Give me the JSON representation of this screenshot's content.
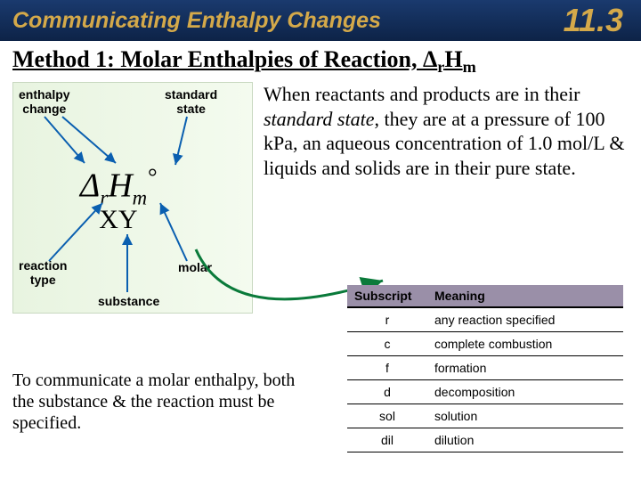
{
  "header": {
    "title": "Communicating Enthalpy Changes",
    "section_number": "11.3",
    "bg_gradient_top": "#1a3a6e",
    "bg_gradient_bottom": "#0d2347",
    "text_color": "#d4a94a"
  },
  "method_title_prefix": "Method 1: Molar Enthalpies of Reaction, Δ",
  "method_title_sub1": "r",
  "method_title_mid": "H",
  "method_title_sub2": "m",
  "paragraph": "When reactants and products are in their ",
  "paragraph_italic": "standard state",
  "paragraph_rest": ", they are at a pressure of 100 kPa, an aqueous concentration of 1.0 mol/L & liquids and solids are in their pure state.",
  "diagram": {
    "labels": {
      "enthalpy_change": "enthalpy\nchange",
      "standard_state": "standard\nstate",
      "reaction_type": "reaction\ntype",
      "molar": "molar",
      "substance": "substance"
    },
    "formula": {
      "delta": "Δ",
      "sub_r": "r",
      "H": "H",
      "sub_m": "m",
      "sup_o": "°",
      "xy": "XY"
    },
    "arrow_color": "#0a5fb0",
    "bg_color": "#e8f4e0"
  },
  "bottom_text": "To communicate a molar enthalpy, both the substance & the reaction must be specified.",
  "table": {
    "header_bg": "#9a8fa8",
    "columns": [
      "Subscript",
      "Meaning"
    ],
    "rows": [
      [
        "r",
        "any reaction specified"
      ],
      [
        "c",
        "complete combustion"
      ],
      [
        "f",
        "formation"
      ],
      [
        "d",
        "decomposition"
      ],
      [
        "sol",
        "solution"
      ],
      [
        "dil",
        "dilution"
      ]
    ]
  },
  "curve_arrow_color": "#0a7a3a"
}
